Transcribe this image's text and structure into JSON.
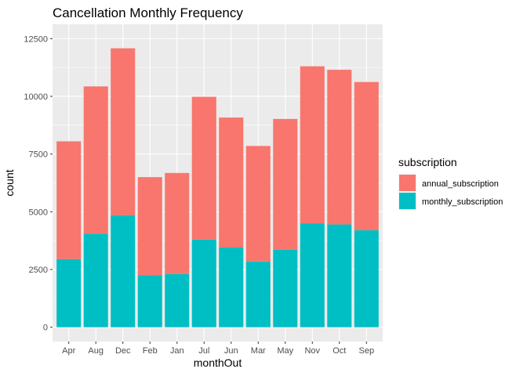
{
  "chart_data": {
    "type": "bar",
    "stacked": true,
    "title": "Cancellation Monthly Frequency",
    "xlabel": "monthOut",
    "ylabel": "count",
    "ylim": [
      0,
      12500
    ],
    "yticks": [
      0,
      2500,
      5000,
      7500,
      10000,
      12500
    ],
    "ytick_labels": [
      "0",
      "2500",
      "5000",
      "7500",
      "10000",
      "12500"
    ],
    "grid": true,
    "legend_position": "right",
    "legend_title": "subscription",
    "categories": [
      "Apr",
      "Aug",
      "Dec",
      "Feb",
      "Jan",
      "Jul",
      "Jun",
      "Mar",
      "May",
      "Nov",
      "Oct",
      "Sep"
    ],
    "series": [
      {
        "name": "monthly_subscription",
        "color": "#00BFC4",
        "values": [
          2950,
          4050,
          4850,
          2250,
          2300,
          3800,
          3450,
          2850,
          3350,
          4500,
          4450,
          4200
        ]
      },
      {
        "name": "annual_subscription",
        "color": "#F8766D",
        "values": [
          5100,
          6380,
          7230,
          4250,
          4380,
          6180,
          5630,
          5000,
          5670,
          6800,
          6700,
          6420
        ]
      }
    ],
    "legend_order": [
      "annual_subscription",
      "monthly_subscription"
    ]
  },
  "style": {
    "panel_bg": "#EBEBEB",
    "grid_major": "#FFFFFF"
  }
}
